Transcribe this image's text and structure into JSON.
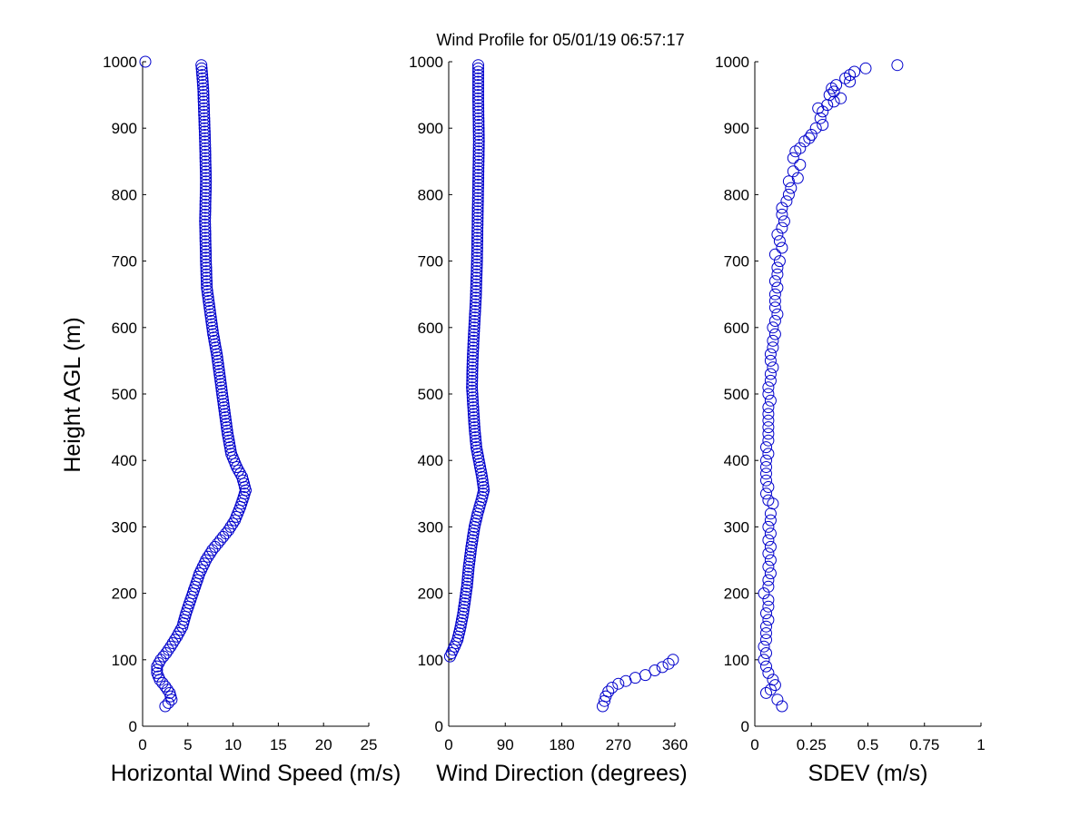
{
  "title": "Wind Profile for  05/01/19 06:57:17",
  "ylabel": "Height AGL (m)",
  "chart_data": [
    {
      "type": "scatter",
      "xlabel": "Horizontal Wind Speed (m/s)",
      "ylabel": "Height AGL (m)",
      "xlim": [
        0,
        25
      ],
      "ylim": [
        0,
        1000
      ],
      "xticks": [
        "0",
        "5",
        "10",
        "15",
        "20",
        "25"
      ],
      "yticks": [
        "0",
        "100",
        "200",
        "300",
        "400",
        "500",
        "600",
        "700",
        "800",
        "900",
        "1000"
      ],
      "anchors": [
        [
          2.5,
          30
        ],
        [
          3.2,
          40
        ],
        [
          3.0,
          50
        ],
        [
          2.5,
          60
        ],
        [
          1.9,
          70
        ],
        [
          1.6,
          80
        ],
        [
          1.6,
          90
        ],
        [
          2.0,
          100
        ],
        [
          2.6,
          110
        ],
        [
          3.1,
          120
        ],
        [
          3.8,
          135
        ],
        [
          4.4,
          150
        ],
        [
          4.8,
          170
        ],
        [
          5.3,
          190
        ],
        [
          5.8,
          210
        ],
        [
          6.3,
          230
        ],
        [
          7.0,
          250
        ],
        [
          7.7,
          265
        ],
        [
          8.6,
          280
        ],
        [
          9.5,
          295
        ],
        [
          10.2,
          310
        ],
        [
          10.8,
          330
        ],
        [
          11.4,
          355
        ],
        [
          11.0,
          375
        ],
        [
          10.4,
          390
        ],
        [
          9.8,
          410
        ],
        [
          9.4,
          440
        ],
        [
          9.0,
          480
        ],
        [
          8.6,
          520
        ],
        [
          8.2,
          560
        ],
        [
          7.8,
          590
        ],
        [
          7.4,
          630
        ],
        [
          7.1,
          660
        ],
        [
          7.0,
          700
        ],
        [
          6.9,
          760
        ],
        [
          7.0,
          820
        ],
        [
          6.9,
          880
        ],
        [
          6.8,
          920
        ],
        [
          6.7,
          960
        ],
        [
          6.5,
          995
        ]
      ],
      "step": 5,
      "extra_points": [
        [
          0.3,
          1000
        ]
      ]
    },
    {
      "type": "scatter",
      "xlabel": "Wind Direction (degrees)",
      "xlim": [
        0,
        360
      ],
      "ylim": [
        0,
        1000
      ],
      "xticks": [
        "0",
        "90",
        "180",
        "270",
        "360"
      ],
      "yticks": [
        "0",
        "100",
        "200",
        "300",
        "400",
        "500",
        "600",
        "700",
        "800",
        "900",
        "1000"
      ],
      "anchors": [
        [
          2,
          105
        ],
        [
          7,
          115
        ],
        [
          14,
          130
        ],
        [
          19,
          150
        ],
        [
          23,
          170
        ],
        [
          26,
          190
        ],
        [
          29,
          210
        ],
        [
          32,
          240
        ],
        [
          36,
          270
        ],
        [
          41,
          300
        ],
        [
          46,
          320
        ],
        [
          52,
          340
        ],
        [
          56,
          355
        ],
        [
          53,
          375
        ],
        [
          49,
          395
        ],
        [
          44,
          420
        ],
        [
          41,
          450
        ],
        [
          39,
          480
        ],
        [
          37,
          510
        ],
        [
          38,
          550
        ],
        [
          40,
          590
        ],
        [
          43,
          640
        ],
        [
          45,
          700
        ],
        [
          46,
          760
        ],
        [
          47,
          820
        ],
        [
          48,
          880
        ],
        [
          47,
          940
        ],
        [
          47,
          995
        ]
      ],
      "step": 5,
      "extra_points": [
        [
          245,
          30
        ],
        [
          248,
          38
        ],
        [
          250,
          45
        ],
        [
          254,
          52
        ],
        [
          260,
          58
        ],
        [
          270,
          64
        ],
        [
          282,
          68
        ],
        [
          297,
          73
        ],
        [
          313,
          77
        ],
        [
          328,
          84
        ],
        [
          340,
          89
        ],
        [
          350,
          94
        ],
        [
          357,
          100
        ]
      ]
    },
    {
      "type": "scatter",
      "xlabel": "SDEV  (m/s)",
      "xlim": [
        0,
        1
      ],
      "ylim": [
        0,
        1000
      ],
      "xticks": [
        "0",
        "0.25",
        "0.5",
        "0.75",
        "1"
      ],
      "yticks": [
        "0",
        "100",
        "200",
        "300",
        "400",
        "500",
        "600",
        "700",
        "800",
        "900",
        "1000"
      ],
      "points": [
        [
          0.12,
          30
        ],
        [
          0.1,
          40
        ],
        [
          0.05,
          50
        ],
        [
          0.07,
          55
        ],
        [
          0.09,
          62
        ],
        [
          0.08,
          70
        ],
        [
          0.06,
          80
        ],
        [
          0.05,
          90
        ],
        [
          0.04,
          100
        ],
        [
          0.05,
          110
        ],
        [
          0.04,
          120
        ],
        [
          0.05,
          130
        ],
        [
          0.05,
          140
        ],
        [
          0.05,
          150
        ],
        [
          0.06,
          160
        ],
        [
          0.05,
          170
        ],
        [
          0.06,
          180
        ],
        [
          0.06,
          190
        ],
        [
          0.04,
          200
        ],
        [
          0.06,
          210
        ],
        [
          0.06,
          220
        ],
        [
          0.07,
          230
        ],
        [
          0.06,
          240
        ],
        [
          0.07,
          250
        ],
        [
          0.06,
          260
        ],
        [
          0.07,
          270
        ],
        [
          0.06,
          280
        ],
        [
          0.07,
          290
        ],
        [
          0.06,
          300
        ],
        [
          0.07,
          310
        ],
        [
          0.07,
          320
        ],
        [
          0.08,
          335
        ],
        [
          0.06,
          340
        ],
        [
          0.05,
          350
        ],
        [
          0.06,
          360
        ],
        [
          0.05,
          370
        ],
        [
          0.05,
          380
        ],
        [
          0.05,
          390
        ],
        [
          0.05,
          400
        ],
        [
          0.06,
          410
        ],
        [
          0.05,
          420
        ],
        [
          0.06,
          430
        ],
        [
          0.06,
          440
        ],
        [
          0.06,
          450
        ],
        [
          0.06,
          460
        ],
        [
          0.06,
          470
        ],
        [
          0.06,
          480
        ],
        [
          0.07,
          490
        ],
        [
          0.06,
          500
        ],
        [
          0.06,
          510
        ],
        [
          0.07,
          520
        ],
        [
          0.07,
          530
        ],
        [
          0.08,
          540
        ],
        [
          0.07,
          550
        ],
        [
          0.07,
          560
        ],
        [
          0.08,
          570
        ],
        [
          0.08,
          580
        ],
        [
          0.09,
          590
        ],
        [
          0.08,
          600
        ],
        [
          0.09,
          610
        ],
        [
          0.1,
          620
        ],
        [
          0.09,
          630
        ],
        [
          0.09,
          640
        ],
        [
          0.09,
          650
        ],
        [
          0.1,
          660
        ],
        [
          0.09,
          670
        ],
        [
          0.1,
          680
        ],
        [
          0.1,
          690
        ],
        [
          0.11,
          700
        ],
        [
          0.09,
          710
        ],
        [
          0.12,
          720
        ],
        [
          0.11,
          730
        ],
        [
          0.1,
          740
        ],
        [
          0.12,
          750
        ],
        [
          0.13,
          760
        ],
        [
          0.12,
          770
        ],
        [
          0.12,
          780
        ],
        [
          0.14,
          790
        ],
        [
          0.15,
          800
        ],
        [
          0.16,
          810
        ],
        [
          0.15,
          820
        ],
        [
          0.19,
          825
        ],
        [
          0.17,
          835
        ],
        [
          0.2,
          845
        ],
        [
          0.17,
          855
        ],
        [
          0.18,
          865
        ],
        [
          0.2,
          870
        ],
        [
          0.22,
          880
        ],
        [
          0.24,
          885
        ],
        [
          0.25,
          890
        ],
        [
          0.27,
          900
        ],
        [
          0.3,
          905
        ],
        [
          0.29,
          915
        ],
        [
          0.3,
          925
        ],
        [
          0.28,
          930
        ],
        [
          0.32,
          935
        ],
        [
          0.35,
          940
        ],
        [
          0.38,
          945
        ],
        [
          0.33,
          950
        ],
        [
          0.35,
          955
        ],
        [
          0.34,
          960
        ],
        [
          0.36,
          965
        ],
        [
          0.42,
          970
        ],
        [
          0.4,
          975
        ],
        [
          0.42,
          980
        ],
        [
          0.44,
          985
        ],
        [
          0.49,
          990
        ],
        [
          0.63,
          995
        ]
      ]
    }
  ]
}
